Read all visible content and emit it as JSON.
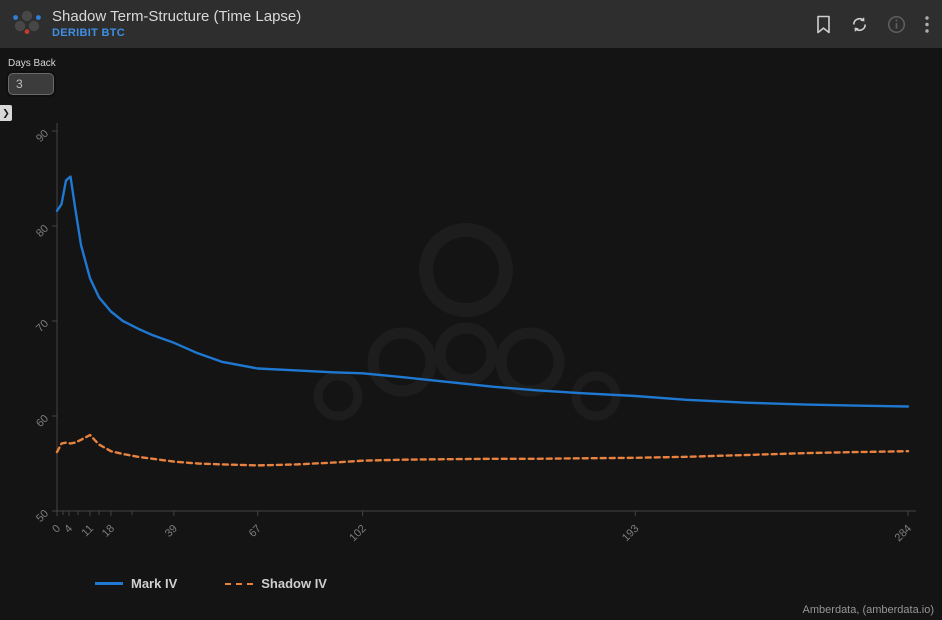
{
  "header": {
    "title": "Shadow Term-Structure (Time Lapse)",
    "subtitle": "DERIBIT BTC"
  },
  "controls": {
    "days_back_label": "Days Back",
    "days_back_value": "3",
    "panel_toggle_glyph": "❯"
  },
  "chart_data": {
    "type": "line",
    "title": "Shadow Term-Structure (Time Lapse)",
    "xlabel": "",
    "ylabel": "",
    "xlim": [
      0,
      284
    ],
    "ylim": [
      50,
      90
    ],
    "y_ticks": [
      50,
      60,
      70,
      80,
      90
    ],
    "x_tick_labels": [
      0,
      4,
      11,
      18,
      39,
      67,
      102,
      193,
      284
    ],
    "x_minor_ticks": [
      2,
      7,
      14,
      25
    ],
    "grid": false,
    "legend_position": "bottom-left",
    "x": [
      0,
      1.5,
      3,
      4.5,
      6,
      8,
      11,
      14,
      18,
      22,
      27,
      32,
      39,
      47,
      55,
      67,
      80,
      92,
      102,
      115,
      130,
      145,
      160,
      175,
      193,
      210,
      230,
      250,
      266,
      284
    ],
    "series": [
      {
        "name": "Mark IV",
        "color": "#1f78d1",
        "dash": "solid",
        "values": [
          81.6,
          82.3,
          84.8,
          85.2,
          82.0,
          78.0,
          74.5,
          72.5,
          71.0,
          70.0,
          69.2,
          68.5,
          67.7,
          66.6,
          65.7,
          65.0,
          64.8,
          64.6,
          64.5,
          64.1,
          63.6,
          63.1,
          62.7,
          62.4,
          62.1,
          61.7,
          61.4,
          61.2,
          61.1,
          61.0
        ]
      },
      {
        "name": "Shadow IV",
        "color": "#e8823f",
        "dash": "dashed",
        "values": [
          56.2,
          57.1,
          57.2,
          57.1,
          57.2,
          57.5,
          58.0,
          57.0,
          56.3,
          56.0,
          55.7,
          55.5,
          55.2,
          55.0,
          54.9,
          54.8,
          54.9,
          55.1,
          55.3,
          55.4,
          55.45,
          55.5,
          55.5,
          55.55,
          55.6,
          55.7,
          55.9,
          56.1,
          56.2,
          56.3
        ]
      }
    ]
  },
  "footer": {
    "attribution": "Amberdata, (amberdata.io)"
  }
}
